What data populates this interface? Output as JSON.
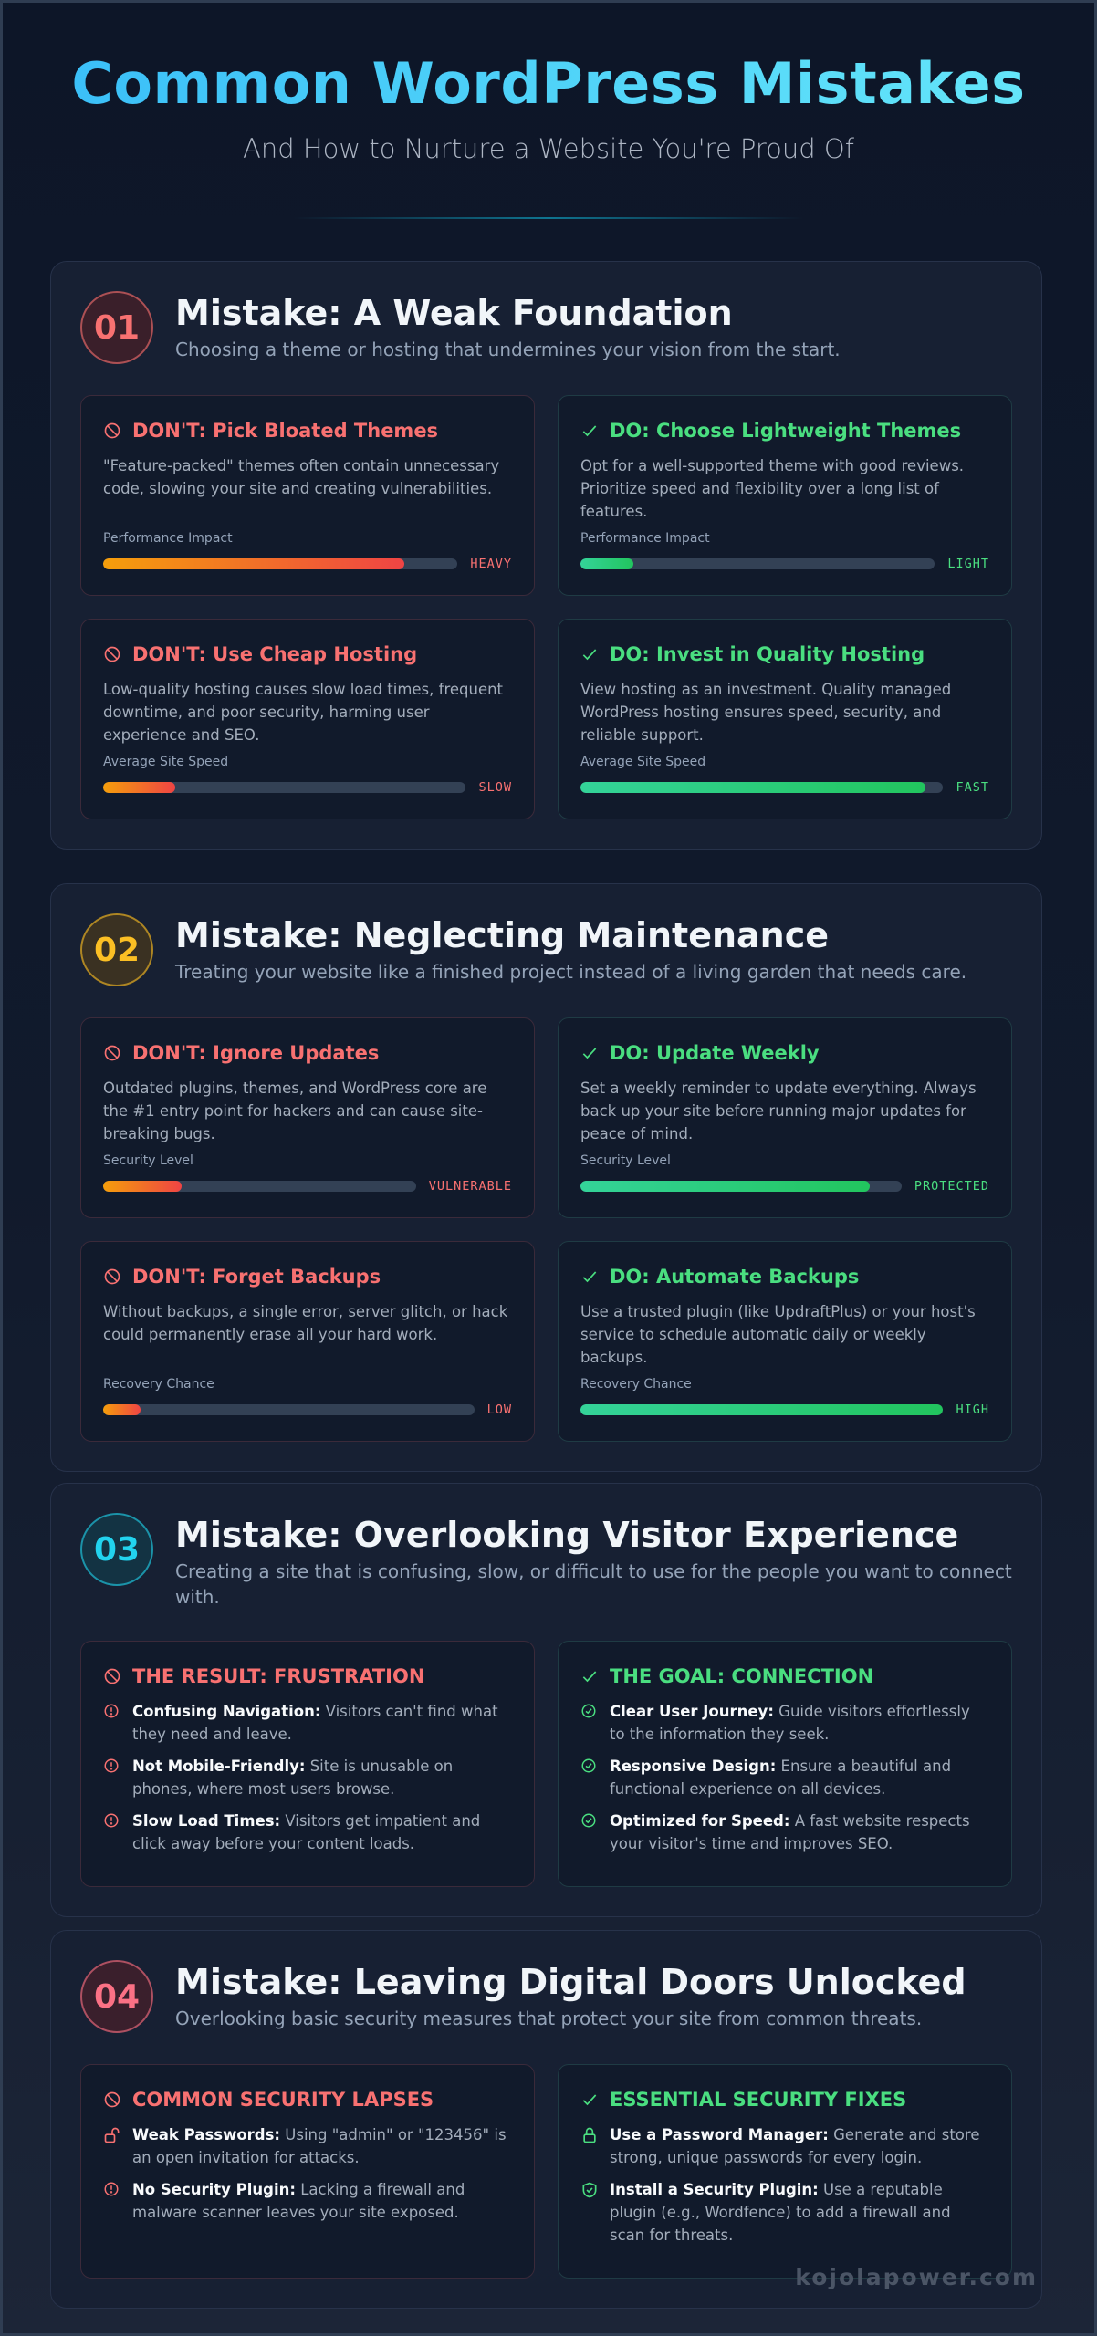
{
  "header": {
    "title": "Common WordPress Mistakes",
    "subtitle": "And How to Nurture a Website You're Proud Of"
  },
  "colors": {
    "dont": "#f87171",
    "do": "#4ade80",
    "badge_01": "#f87171",
    "badge_02": "#fbbf24",
    "badge_03": "#22d3ee",
    "badge_04": "#fb7185"
  },
  "sections": [
    {
      "number": "01",
      "title": "Mistake: A Weak Foundation",
      "subtitle": "Choosing a theme or hosting that undermines your vision from the start.",
      "cards": [
        {
          "type": "dont",
          "icon": "prohibited-icon",
          "title": "DON'T: Pick Bloated Themes",
          "desc": "\"Feature-packed\" themes often contain unnecessary code, slowing your site and creating vulnerabilities.",
          "meter_label": "Performance Impact",
          "meter_value_label": "HEAVY",
          "meter_percent": 85
        },
        {
          "type": "do",
          "icon": "check-icon",
          "title": "DO: Choose Lightweight Themes",
          "desc": "Opt for a well-supported theme with good reviews. Prioritize speed and flexibility over a long list of features.",
          "meter_label": "Performance Impact",
          "meter_value_label": "LIGHT",
          "meter_percent": 15
        },
        {
          "type": "dont",
          "icon": "prohibited-icon",
          "title": "DON'T: Use Cheap Hosting",
          "desc": "Low-quality hosting causes slow load times, frequent downtime, and poor security, harming user experience and SEO.",
          "meter_label": "Average Site Speed",
          "meter_value_label": "SLOW",
          "meter_percent": 20
        },
        {
          "type": "do",
          "icon": "check-icon",
          "title": "DO: Invest in Quality Hosting",
          "desc": "View hosting as an investment. Quality managed WordPress hosting ensures speed, security, and reliable support.",
          "meter_label": "Average Site Speed",
          "meter_value_label": "FAST",
          "meter_percent": 95
        }
      ]
    },
    {
      "number": "02",
      "title": "Mistake: Neglecting Maintenance",
      "subtitle": "Treating your website like a finished project instead of a living garden that needs care.",
      "cards": [
        {
          "type": "dont",
          "icon": "prohibited-icon",
          "title": "DON'T: Ignore Updates",
          "desc": "Outdated plugins, themes, and WordPress core are the #1 entry point for hackers and can cause site-breaking bugs.",
          "meter_label": "Security Level",
          "meter_value_label": "VULNERABLE",
          "meter_percent": 25
        },
        {
          "type": "do",
          "icon": "check-icon",
          "title": "DO: Update Weekly",
          "desc": "Set a weekly reminder to update everything. Always back up your site before running major updates for peace of mind.",
          "meter_label": "Security Level",
          "meter_value_label": "PROTECTED",
          "meter_percent": 90
        },
        {
          "type": "dont",
          "icon": "prohibited-icon",
          "title": "DON'T: Forget Backups",
          "desc": "Without backups, a single error, server glitch, or hack could permanently erase all your hard work.",
          "meter_label": "Recovery Chance",
          "meter_value_label": "LOW",
          "meter_percent": 10
        },
        {
          "type": "do",
          "icon": "check-icon",
          "title": "DO: Automate Backups",
          "desc": "Use a trusted plugin (like UpdraftPlus) or your host's service to schedule automatic daily or weekly backups.",
          "meter_label": "Recovery Chance",
          "meter_value_label": "HIGH",
          "meter_percent": 100
        }
      ]
    },
    {
      "number": "03",
      "title": "Mistake: Overlooking Visitor Experience",
      "subtitle": "Creating a site that is confusing, slow, or difficult to use for the people you want to connect with.",
      "cards": [
        {
          "type": "dont",
          "icon": "prohibited-icon",
          "title": "THE RESULT: FRUSTRATION",
          "items": [
            {
              "icon": "alert-circle-icon",
              "lead": "Confusing Navigation:",
              "text": " Visitors can't find what they need and leave."
            },
            {
              "icon": "alert-circle-icon",
              "lead": "Not Mobile-Friendly:",
              "text": " Site is unusable on phones, where most users browse."
            },
            {
              "icon": "alert-circle-icon",
              "lead": "Slow Load Times:",
              "text": " Visitors get impatient and click away before your content loads."
            }
          ]
        },
        {
          "type": "do",
          "icon": "check-icon",
          "title": "THE GOAL: CONNECTION",
          "items": [
            {
              "icon": "check-circle-icon",
              "lead": "Clear User Journey:",
              "text": " Guide visitors effortlessly to the information they seek."
            },
            {
              "icon": "check-circle-icon",
              "lead": "Responsive Design:",
              "text": " Ensure a beautiful and functional experience on all devices."
            },
            {
              "icon": "check-circle-icon",
              "lead": "Optimized for Speed:",
              "text": " A fast website respects your visitor's time and improves SEO."
            }
          ]
        }
      ]
    },
    {
      "number": "04",
      "title": "Mistake: Leaving Digital Doors Unlocked",
      "subtitle": "Overlooking basic security measures that protect your site from common threats.",
      "cards": [
        {
          "type": "dont",
          "icon": "prohibited-icon",
          "title": "COMMON SECURITY LAPSES",
          "items": [
            {
              "icon": "unlock-icon",
              "lead": "Weak Passwords:",
              "text": " Using \"admin\" or \"123456\" is an open invitation for attacks."
            },
            {
              "icon": "alert-circle-icon",
              "lead": "No Security Plugin:",
              "text": " Lacking a firewall and malware scanner leaves your site exposed."
            }
          ]
        },
        {
          "type": "do",
          "icon": "check-icon",
          "title": "ESSENTIAL SECURITY FIXES",
          "items": [
            {
              "icon": "lock-icon",
              "lead": "Use a Password Manager:",
              "text": " Generate and store strong, unique passwords for every login."
            },
            {
              "icon": "shield-check-icon",
              "lead": "Install a Security Plugin:",
              "text": " Use a reputable plugin (e.g., Wordfence) to add a firewall and scan for threats."
            }
          ]
        }
      ]
    }
  ],
  "watermark": "kojolapower.com"
}
